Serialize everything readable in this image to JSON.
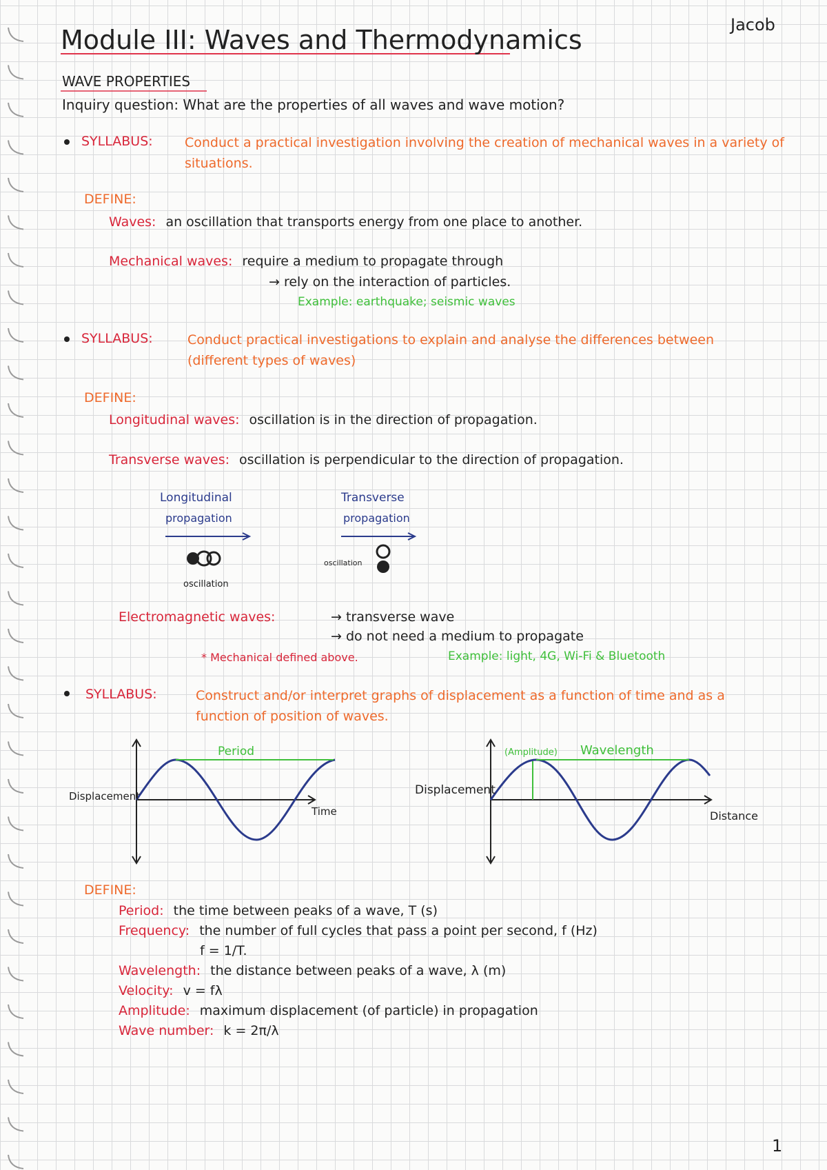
{
  "header": {
    "title": "Module III: Waves and Thermodynamics",
    "author": "Jacob"
  },
  "section": "WAVE PROPERTIES",
  "inquiry": "Inquiry question: What are the properties of all waves and wave motion?",
  "syllabus_label": "SYLLABUS:",
  "define_label": "DEFINE:",
  "syllabus_1": "Conduct a practical investigation involving the creation of mechanical waves in a variety of situations.",
  "definitions_1": [
    {
      "term": "Waves:",
      "text": "an oscillation that transports energy from one place to another."
    },
    {
      "term": "Mechanical waves:",
      "text": "require a medium to propagate through",
      "sub": "→ rely on the interaction of particles.",
      "example": "Example: earthquake; seismic waves"
    }
  ],
  "syllabus_2": "Conduct practical investigations to explain and analyse the differences between (different types of waves)",
  "definitions_2": [
    {
      "term": "Longitudinal waves:",
      "text": "oscillation is in the direction of propagation."
    },
    {
      "term": "Transverse waves:",
      "text": "oscillation is perpendicular to the direction of propagation."
    }
  ],
  "diagrams": [
    {
      "title": "Longitudinal",
      "propagation": "propagation",
      "oscillation": "oscillation"
    },
    {
      "title": "Transverse",
      "propagation": "propagation",
      "oscillation": "oscillation"
    }
  ],
  "electromagnetic": {
    "term": "Electromagnetic waves:",
    "lines": [
      "→ transverse wave",
      "→ do not need a medium to propagate"
    ],
    "note": "* Mechanical defined above.",
    "example": "Example: light, 4G, Wi-Fi & Bluetooth"
  },
  "syllabus_3": "Construct and/or interpret graphs of displacement as a function of time and as a function of position of waves.",
  "graphs": [
    {
      "y_label": "Displacement",
      "x_label": "Time",
      "labels": [
        "Period"
      ]
    },
    {
      "y_label": "Displacement",
      "x_label": "Distance",
      "labels": [
        "(Amplitude)",
        "Wavelength"
      ]
    }
  ],
  "definitions_3": [
    {
      "term": "Period:",
      "text": "the time between peaks of a wave, T (s)"
    },
    {
      "term": "Frequency:",
      "text": "the number of full cycles that pass a point per second, f (Hz)",
      "sub": "f = 1/T."
    },
    {
      "term": "Wavelength:",
      "text": "the distance between peaks of a wave, λ (m)"
    },
    {
      "term": "Velocity:",
      "text": "v = fλ"
    },
    {
      "term": "Amplitude:",
      "text": "maximum displacement (of particle) in propagation"
    },
    {
      "term": "Wave number:",
      "text": "k = 2π/λ"
    }
  ],
  "page_number": "1"
}
